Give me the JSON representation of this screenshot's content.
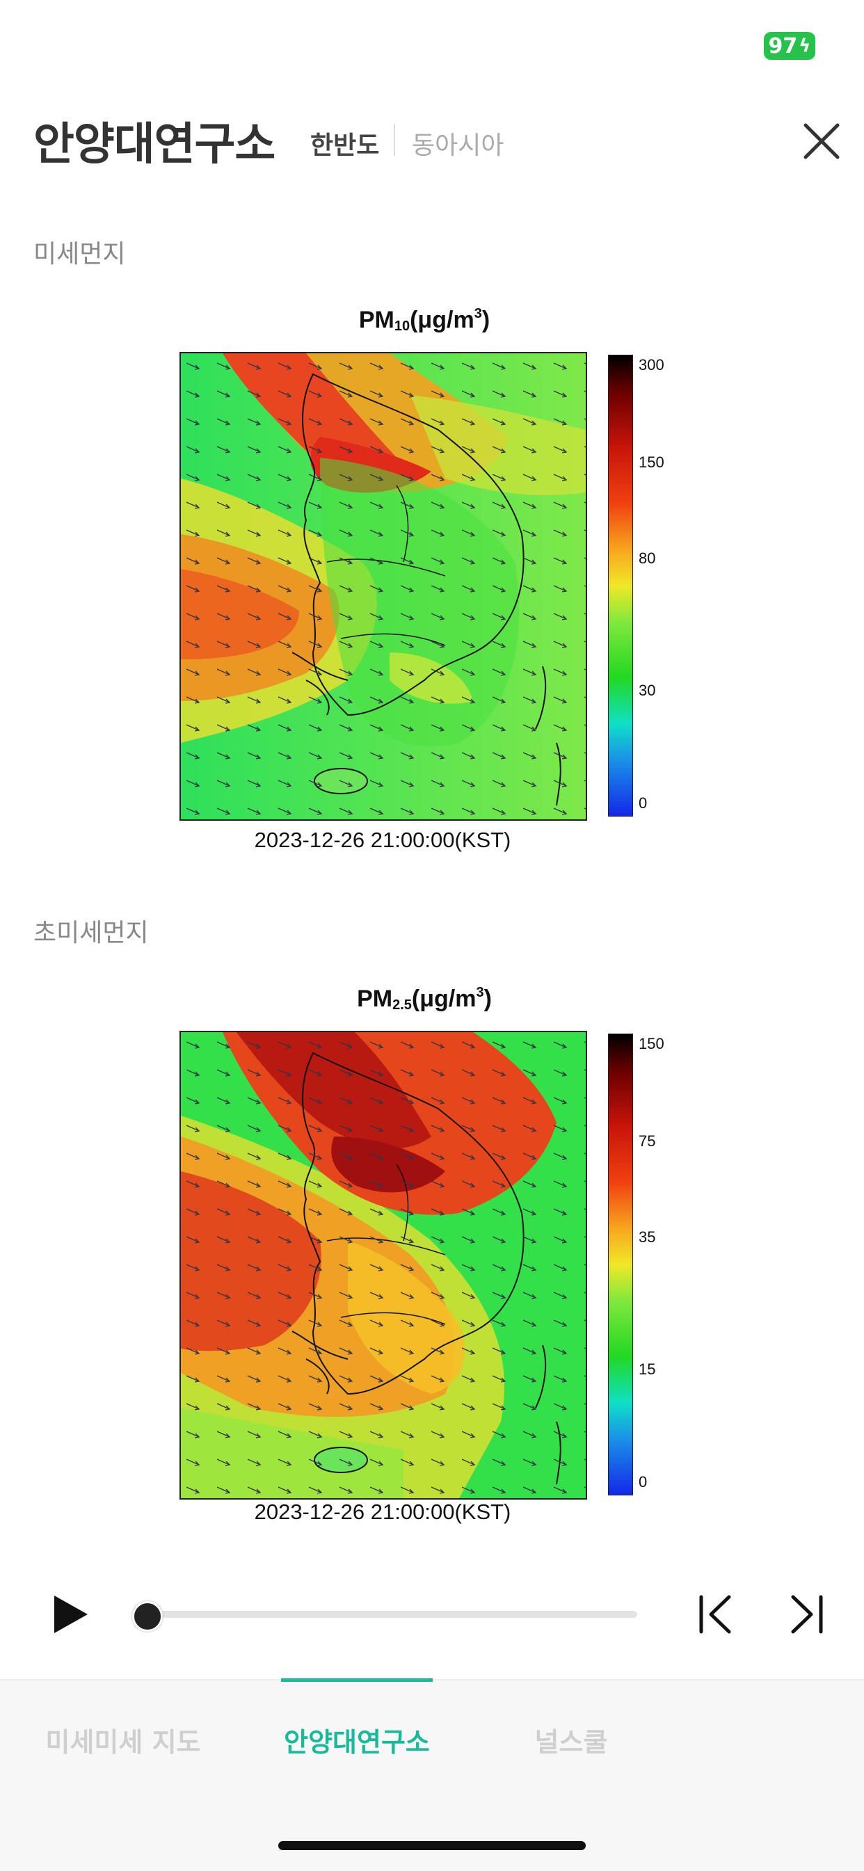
{
  "status_bar": {
    "battery": "97"
  },
  "header": {
    "title": "안양대연구소",
    "segments": {
      "active": "한반도",
      "inactive": "동아시아"
    }
  },
  "sections": [
    {
      "label": "미세먼지",
      "figure": {
        "title_main": "PM",
        "title_sub": "10",
        "title_unit_prefix": "(μg/m",
        "title_unit_sup": "3",
        "title_unit_suffix": ")",
        "timestamp": "2023-12-26 21:00:00(KST)",
        "colorbar_ticks": [
          "300",
          "150",
          "80",
          "30",
          "0"
        ]
      }
    },
    {
      "label": "초미세먼지",
      "figure": {
        "title_main": "PM",
        "title_sub": "2.5",
        "title_unit_prefix": "(μg/m",
        "title_unit_sup": "3",
        "title_unit_suffix": ")",
        "timestamp": "2023-12-26 21:00:00(KST)",
        "colorbar_ticks": [
          "150",
          "75",
          "35",
          "15",
          "0"
        ]
      }
    }
  ],
  "player": {
    "progress": 0
  },
  "tabs": [
    {
      "label": "미세미세 지도",
      "active": false
    },
    {
      "label": "안양대연구소",
      "active": true
    },
    {
      "label": "널스쿨",
      "active": false
    }
  ],
  "colors": {
    "accent": "#19b99a",
    "battery": "#27c24c"
  }
}
